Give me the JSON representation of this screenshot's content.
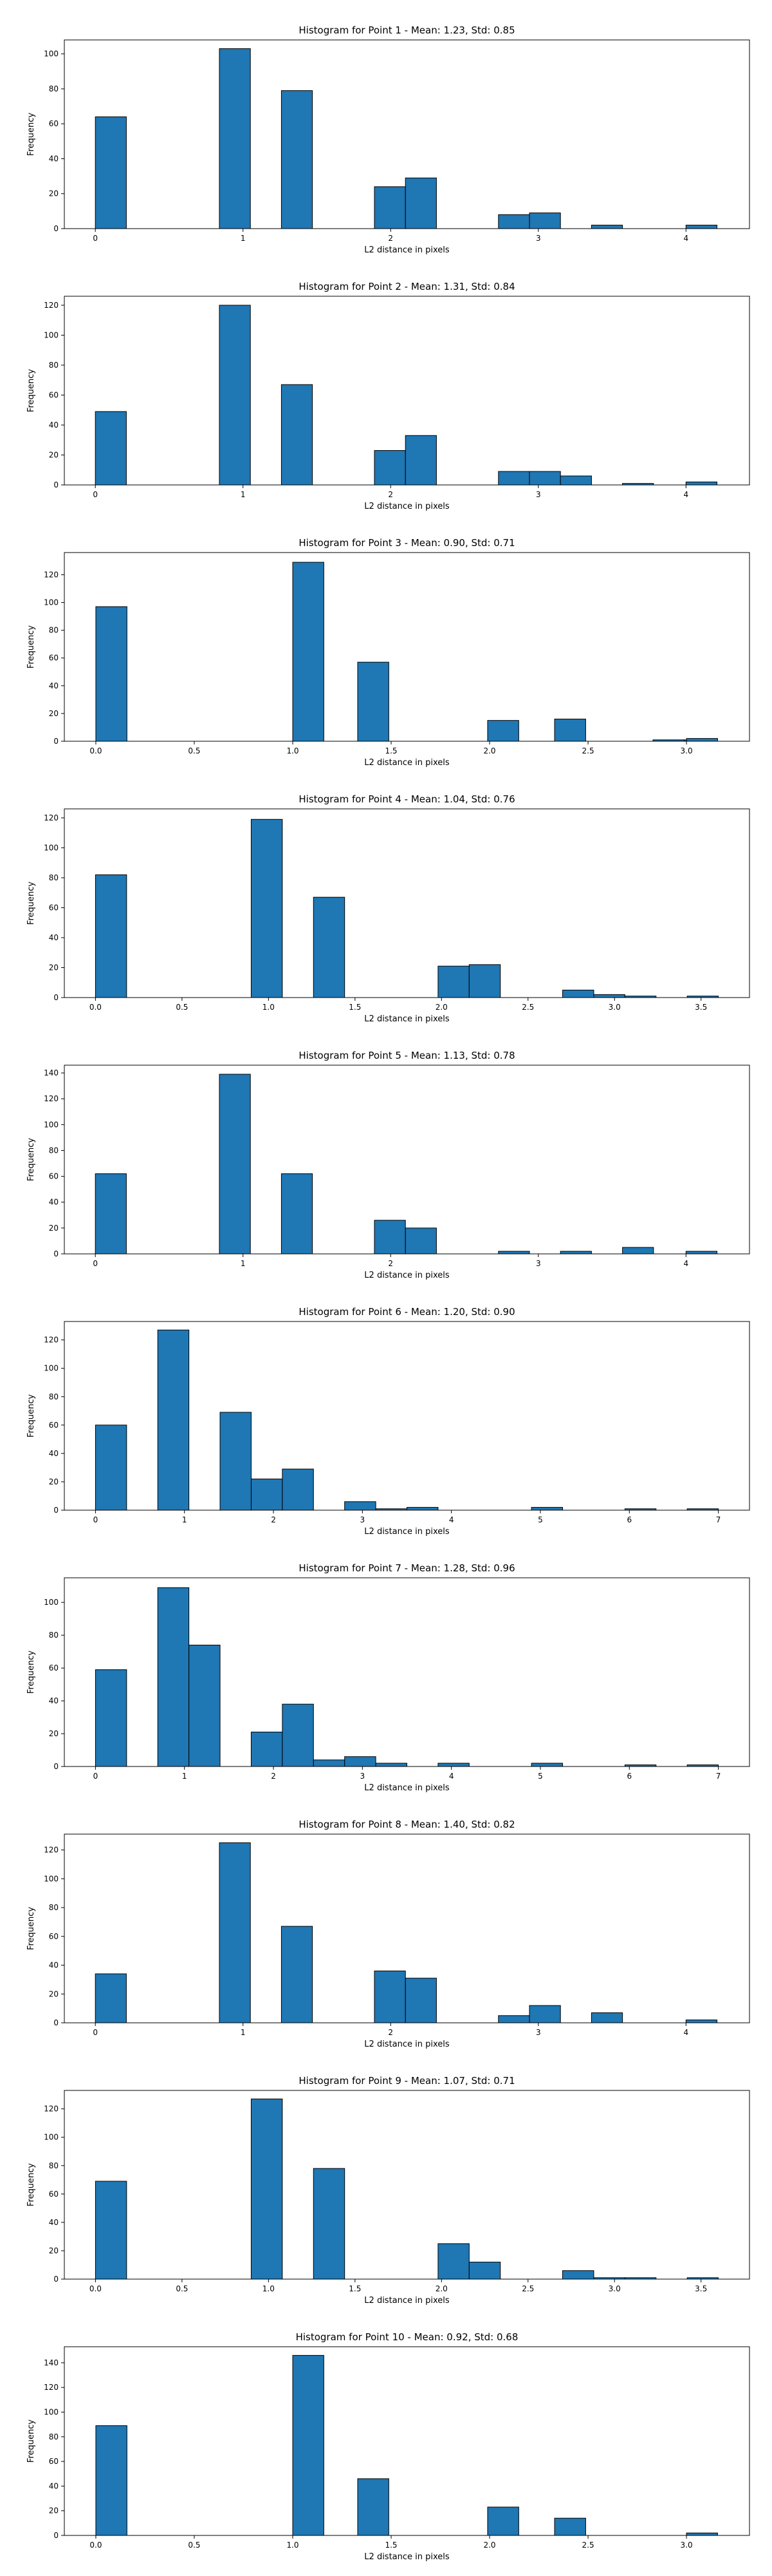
{
  "chart_data": [
    {
      "type": "bar",
      "title": "Histogram for Point 1 - Mean: 1.23, Std: 0.85",
      "xlabel": "L2 distance in pixels",
      "ylabel": "Frequency",
      "xlim": [
        -0.21,
        4.43
      ],
      "ylim": [
        0,
        108
      ],
      "xticks": [
        0,
        1,
        2,
        3,
        4
      ],
      "xtick_labels": [
        "0",
        "1",
        "2",
        "3",
        "4"
      ],
      "yticks": [
        0,
        20,
        40,
        60,
        80,
        100
      ],
      "bin_width": 0.21,
      "bins": [
        {
          "x": 0.0,
          "value": 64
        },
        {
          "x": 0.84,
          "value": 103
        },
        {
          "x": 1.26,
          "value": 79
        },
        {
          "x": 1.89,
          "value": 24
        },
        {
          "x": 2.1,
          "value": 29
        },
        {
          "x": 2.73,
          "value": 8
        },
        {
          "x": 2.94,
          "value": 9
        },
        {
          "x": 3.36,
          "value": 2
        },
        {
          "x": 4.0,
          "value": 2
        }
      ]
    },
    {
      "type": "bar",
      "title": "Histogram for Point 2 - Mean: 1.31, Std: 0.84",
      "xlabel": "L2 distance in pixels",
      "ylabel": "Frequency",
      "xlim": [
        -0.21,
        4.43
      ],
      "ylim": [
        0,
        126
      ],
      "xticks": [
        0,
        1,
        2,
        3,
        4
      ],
      "xtick_labels": [
        "0",
        "1",
        "2",
        "3",
        "4"
      ],
      "yticks": [
        0,
        20,
        40,
        60,
        80,
        100,
        120
      ],
      "bin_width": 0.21,
      "bins": [
        {
          "x": 0.0,
          "value": 49
        },
        {
          "x": 0.84,
          "value": 120
        },
        {
          "x": 1.26,
          "value": 67
        },
        {
          "x": 1.89,
          "value": 23
        },
        {
          "x": 2.1,
          "value": 33
        },
        {
          "x": 2.73,
          "value": 9
        },
        {
          "x": 2.94,
          "value": 9
        },
        {
          "x": 3.15,
          "value": 6
        },
        {
          "x": 3.57,
          "value": 1
        },
        {
          "x": 4.0,
          "value": 2
        }
      ]
    },
    {
      "type": "bar",
      "title": "Histogram for Point 3 - Mean: 0.90, Std: 0.71",
      "xlabel": "L2 distance in pixels",
      "ylabel": "Frequency",
      "xlim": [
        -0.16,
        3.32
      ],
      "ylim": [
        0,
        136
      ],
      "xticks": [
        0,
        0.5,
        1,
        1.5,
        2,
        2.5,
        3
      ],
      "xtick_labels": [
        "0.0",
        "0.5",
        "1.0",
        "1.5",
        "2.0",
        "2.5",
        "3.0"
      ],
      "yticks": [
        0,
        20,
        40,
        60,
        80,
        100,
        120
      ],
      "bin_width": 0.158,
      "bins": [
        {
          "x": 0.0,
          "value": 97
        },
        {
          "x": 1.0,
          "value": 129
        },
        {
          "x": 1.33,
          "value": 57
        },
        {
          "x": 1.99,
          "value": 15
        },
        {
          "x": 2.33,
          "value": 16
        },
        {
          "x": 2.83,
          "value": 1
        },
        {
          "x": 2.99,
          "value": 1
        },
        {
          "x": 3.0,
          "value": 2
        }
      ]
    },
    {
      "type": "bar",
      "title": "Histogram for Point 4 - Mean: 1.04, Std: 0.76",
      "xlabel": "L2 distance in pixels",
      "ylabel": "Frequency",
      "xlim": [
        -0.18,
        3.78
      ],
      "ylim": [
        0,
        126
      ],
      "xticks": [
        0,
        0.5,
        1,
        1.5,
        2,
        2.5,
        3,
        3.5
      ],
      "xtick_labels": [
        "0.0",
        "0.5",
        "1.0",
        "1.5",
        "2.0",
        "2.5",
        "3.0",
        "3.5"
      ],
      "yticks": [
        0,
        20,
        40,
        60,
        80,
        100,
        120
      ],
      "bin_width": 0.18,
      "bins": [
        {
          "x": 0.0,
          "value": 82
        },
        {
          "x": 0.9,
          "value": 119
        },
        {
          "x": 1.26,
          "value": 67
        },
        {
          "x": 1.98,
          "value": 21
        },
        {
          "x": 2.16,
          "value": 22
        },
        {
          "x": 2.7,
          "value": 5
        },
        {
          "x": 2.88,
          "value": 2
        },
        {
          "x": 3.06,
          "value": 1
        },
        {
          "x": 3.42,
          "value": 1
        }
      ]
    },
    {
      "type": "bar",
      "title": "Histogram for Point 5 - Mean: 1.13, Std: 0.78",
      "xlabel": "L2 distance in pixels",
      "ylabel": "Frequency",
      "xlim": [
        -0.21,
        4.43
      ],
      "ylim": [
        0,
        146
      ],
      "xticks": [
        0,
        1,
        2,
        3,
        4
      ],
      "xtick_labels": [
        "0",
        "1",
        "2",
        "3",
        "4"
      ],
      "yticks": [
        0,
        20,
        40,
        60,
        80,
        100,
        120,
        140
      ],
      "bin_width": 0.21,
      "bins": [
        {
          "x": 0.0,
          "value": 62
        },
        {
          "x": 0.84,
          "value": 139
        },
        {
          "x": 1.26,
          "value": 62
        },
        {
          "x": 1.89,
          "value": 26
        },
        {
          "x": 2.1,
          "value": 20
        },
        {
          "x": 2.73,
          "value": 2
        },
        {
          "x": 3.15,
          "value": 2
        },
        {
          "x": 3.57,
          "value": 5
        },
        {
          "x": 4.0,
          "value": 2
        }
      ]
    },
    {
      "type": "bar",
      "title": "Histogram for Point 6 - Mean: 1.20, Std: 0.90",
      "xlabel": "L2 distance in pixels",
      "ylabel": "Frequency",
      "xlim": [
        -0.35,
        7.35
      ],
      "ylim": [
        0,
        133
      ],
      "xticks": [
        0,
        1,
        2,
        3,
        4,
        5,
        6,
        7
      ],
      "xtick_labels": [
        "0",
        "1",
        "2",
        "3",
        "4",
        "5",
        "6",
        "7"
      ],
      "yticks": [
        0,
        20,
        40,
        60,
        80,
        100,
        120
      ],
      "bin_width": 0.35,
      "bins": [
        {
          "x": 0.0,
          "value": 60
        },
        {
          "x": 0.7,
          "value": 127
        },
        {
          "x": 1.4,
          "value": 69
        },
        {
          "x": 1.75,
          "value": 22
        },
        {
          "x": 2.1,
          "value": 29
        },
        {
          "x": 2.8,
          "value": 6
        },
        {
          "x": 3.15,
          "value": 1
        },
        {
          "x": 3.5,
          "value": 2
        },
        {
          "x": 4.9,
          "value": 2
        },
        {
          "x": 5.95,
          "value": 1
        },
        {
          "x": 6.65,
          "value": 1
        }
      ]
    },
    {
      "type": "bar",
      "title": "Histogram for Point 7 - Mean: 1.28, Std: 0.96",
      "xlabel": "L2 distance in pixels",
      "ylabel": "Frequency",
      "xlim": [
        -0.35,
        7.35
      ],
      "ylim": [
        0,
        115
      ],
      "xticks": [
        0,
        1,
        2,
        3,
        4,
        5,
        6,
        7
      ],
      "xtick_labels": [
        "0",
        "1",
        "2",
        "3",
        "4",
        "5",
        "6",
        "7"
      ],
      "yticks": [
        0,
        20,
        40,
        60,
        80,
        100
      ],
      "bin_width": 0.35,
      "bins": [
        {
          "x": 0.0,
          "value": 59
        },
        {
          "x": 0.7,
          "value": 109
        },
        {
          "x": 1.05,
          "value": 74
        },
        {
          "x": 1.75,
          "value": 21
        },
        {
          "x": 2.1,
          "value": 38
        },
        {
          "x": 2.45,
          "value": 4
        },
        {
          "x": 2.8,
          "value": 6
        },
        {
          "x": 3.15,
          "value": 2
        },
        {
          "x": 3.85,
          "value": 2
        },
        {
          "x": 4.9,
          "value": 2
        },
        {
          "x": 5.95,
          "value": 1
        },
        {
          "x": 6.65,
          "value": 1
        }
      ]
    },
    {
      "type": "bar",
      "title": "Histogram for Point 8 - Mean: 1.40, Std: 0.82",
      "xlabel": "L2 distance in pixels",
      "ylabel": "Frequency",
      "xlim": [
        -0.21,
        4.43
      ],
      "ylim": [
        0,
        131
      ],
      "xticks": [
        0,
        1,
        2,
        3,
        4
      ],
      "xtick_labels": [
        "0",
        "1",
        "2",
        "3",
        "4"
      ],
      "yticks": [
        0,
        20,
        40,
        60,
        80,
        100,
        120
      ],
      "bin_width": 0.21,
      "bins": [
        {
          "x": 0.0,
          "value": 34
        },
        {
          "x": 0.84,
          "value": 125
        },
        {
          "x": 1.26,
          "value": 67
        },
        {
          "x": 1.89,
          "value": 36
        },
        {
          "x": 2.1,
          "value": 31
        },
        {
          "x": 2.73,
          "value": 5
        },
        {
          "x": 2.94,
          "value": 12
        },
        {
          "x": 3.36,
          "value": 7
        },
        {
          "x": 4.0,
          "value": 2
        }
      ]
    },
    {
      "type": "bar",
      "title": "Histogram for Point 9 - Mean: 1.07, Std: 0.71",
      "xlabel": "L2 distance in pixels",
      "ylabel": "Frequency",
      "xlim": [
        -0.18,
        3.78
      ],
      "ylim": [
        0,
        133
      ],
      "xticks": [
        0,
        0.5,
        1,
        1.5,
        2,
        2.5,
        3,
        3.5
      ],
      "xtick_labels": [
        "0.0",
        "0.5",
        "1.0",
        "1.5",
        "2.0",
        "2.5",
        "3.0",
        "3.5"
      ],
      "yticks": [
        0,
        20,
        40,
        60,
        80,
        100,
        120
      ],
      "bin_width": 0.18,
      "bins": [
        {
          "x": 0.0,
          "value": 69
        },
        {
          "x": 0.9,
          "value": 127
        },
        {
          "x": 1.26,
          "value": 78
        },
        {
          "x": 1.98,
          "value": 25
        },
        {
          "x": 2.16,
          "value": 12
        },
        {
          "x": 2.7,
          "value": 6
        },
        {
          "x": 2.88,
          "value": 1
        },
        {
          "x": 3.06,
          "value": 1
        },
        {
          "x": 3.42,
          "value": 1
        }
      ]
    },
    {
      "type": "bar",
      "title": "Histogram for Point 10 - Mean: 0.92, Std: 0.68",
      "xlabel": "L2 distance in pixels",
      "ylabel": "Frequency",
      "xlim": [
        -0.16,
        3.32
      ],
      "ylim": [
        0,
        153
      ],
      "xticks": [
        0,
        0.5,
        1,
        1.5,
        2,
        2.5,
        3
      ],
      "xtick_labels": [
        "0.0",
        "0.5",
        "1.0",
        "1.5",
        "2.0",
        "2.5",
        "3.0"
      ],
      "yticks": [
        0,
        20,
        40,
        60,
        80,
        100,
        120,
        140
      ],
      "bin_width": 0.158,
      "bins": [
        {
          "x": 0.0,
          "value": 89
        },
        {
          "x": 1.0,
          "value": 146
        },
        {
          "x": 1.33,
          "value": 46
        },
        {
          "x": 1.99,
          "value": 23
        },
        {
          "x": 2.33,
          "value": 14
        },
        {
          "x": 3.0,
          "value": 2
        }
      ]
    }
  ]
}
